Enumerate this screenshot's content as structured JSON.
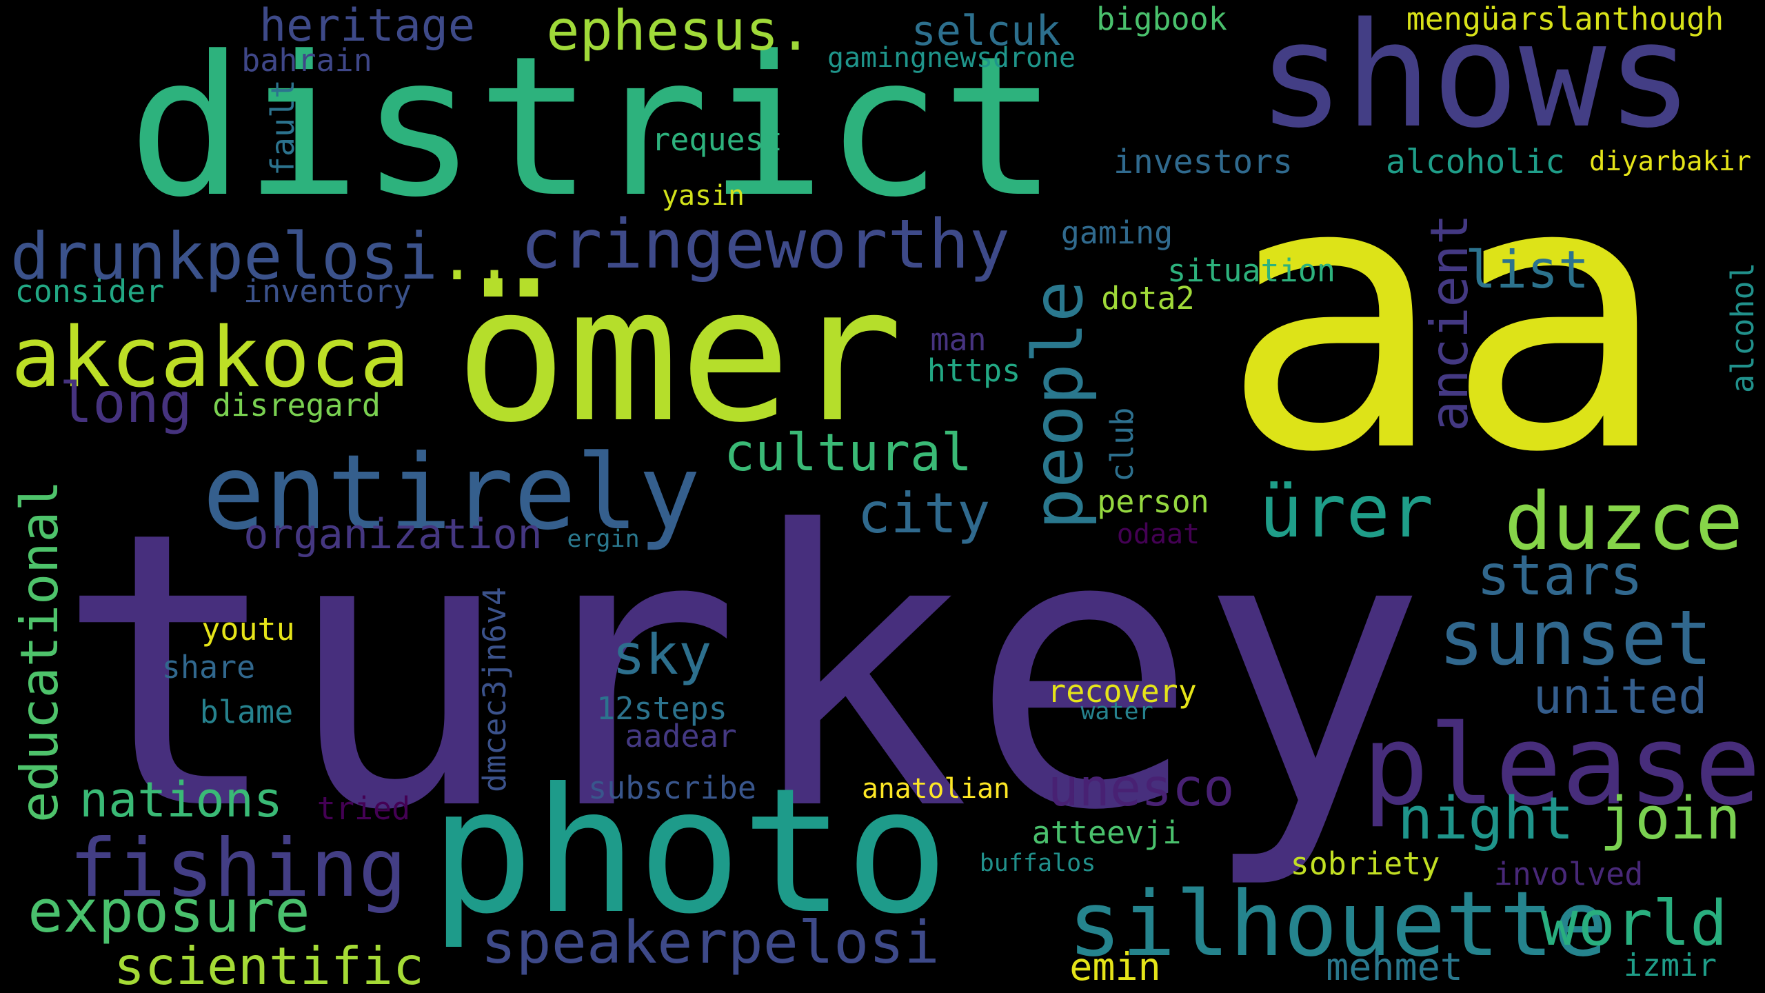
{
  "words": [
    {
      "id": "aa",
      "text": "aa",
      "color": "#dde318"
    },
    {
      "id": "turkey",
      "text": "turkey",
      "color": "#472f7d"
    },
    {
      "id": "district",
      "text": "district",
      "color": "#2db27d"
    },
    {
      "id": "omer",
      "text": "ömer",
      "color": "#b5de2b"
    },
    {
      "id": "shows",
      "text": "shows",
      "color": "#433e85"
    },
    {
      "id": "photo",
      "text": "photo",
      "color": "#1e9b8a"
    },
    {
      "id": "entirely",
      "text": "entirely",
      "color": "#355f8d"
    },
    {
      "id": "please",
      "text": "please",
      "color": "#472d7b"
    },
    {
      "id": "silhouette",
      "text": "silhouette",
      "color": "#25848e"
    },
    {
      "id": "fishing",
      "text": "fishing",
      "color": "#433e85"
    },
    {
      "id": "akcakoca",
      "text": "akcakoca",
      "color": "#bddf26"
    },
    {
      "id": "drunkpelosi",
      "text": "drunkpelosi",
      "color": "#3b528b"
    },
    {
      "id": "cringeworthy",
      "text": "cringeworthy",
      "color": "#3e4a89"
    },
    {
      "id": "people",
      "text": "people",
      "color": "#2a788e"
    },
    {
      "id": "ellipsis",
      "text": "..",
      "color": "#b5de2b"
    },
    {
      "id": "ephesus",
      "text": "ephesus.",
      "color": "#a0da39"
    },
    {
      "id": "sunset",
      "text": "sunset",
      "color": "#31688e"
    },
    {
      "id": "duzce",
      "text": "duzce",
      "color": "#86d549"
    },
    {
      "id": "urer",
      "text": "ürer",
      "color": "#1f9e89"
    },
    {
      "id": "world",
      "text": "world",
      "color": "#29af7f"
    },
    {
      "id": "speakerpelosi",
      "text": "speakerpelosi",
      "color": "#3e4a89"
    },
    {
      "id": "exposure",
      "text": "exposure",
      "color": "#4ac16d"
    },
    {
      "id": "scientific",
      "text": "scientific",
      "color": "#a5db36"
    },
    {
      "id": "night",
      "text": "night",
      "color": "#1f958b"
    },
    {
      "id": "join",
      "text": "join",
      "color": "#7ad151"
    },
    {
      "id": "nations",
      "text": "nations",
      "color": "#3aba76"
    },
    {
      "id": "long",
      "text": "long",
      "color": "#46337f"
    },
    {
      "id": "cultural",
      "text": "cultural",
      "color": "#3aba76"
    },
    {
      "id": "city",
      "text": "city",
      "color": "#306a8e"
    },
    {
      "id": "sky",
      "text": "sky",
      "color": "#2d708e"
    },
    {
      "id": "stars",
      "text": "stars",
      "color": "#31688e"
    },
    {
      "id": "united",
      "text": "united",
      "color": "#355e8d"
    },
    {
      "id": "unesco",
      "text": "unesco",
      "color": "#482173"
    },
    {
      "id": "list",
      "text": "list",
      "color": "#2c738e"
    },
    {
      "id": "ancient",
      "text": "ancient",
      "color": "#443983"
    },
    {
      "id": "educational",
      "text": "educational",
      "color": "#4ec36b"
    },
    {
      "id": "heritage",
      "text": "heritage",
      "color": "#3e4a89"
    },
    {
      "id": "selcuk",
      "text": "selcuk",
      "color": "#2d708e"
    },
    {
      "id": "organization",
      "text": "organization",
      "color": "#453781"
    },
    {
      "id": "investors",
      "text": "investors",
      "color": "#306a8e"
    },
    {
      "id": "alcoholic",
      "text": "alcoholic",
      "color": "#1f9e89"
    },
    {
      "id": "menguarslanthough",
      "text": "mengüarslanthough",
      "color": "#d8e219"
    },
    {
      "id": "bigbook",
      "text": "bigbook",
      "color": "#4ac16d"
    },
    {
      "id": "bahrain",
      "text": "bahrain",
      "color": "#3f4788"
    },
    {
      "id": "gamingnewsdrone",
      "text": "gamingnewsdrone",
      "color": "#1f958b"
    },
    {
      "id": "request",
      "text": "request",
      "color": "#2db27d"
    },
    {
      "id": "yasin",
      "text": "yasin",
      "color": "#d2e21b"
    },
    {
      "id": "fault",
      "text": "fault",
      "color": "#2c738e"
    },
    {
      "id": "diyarbakir",
      "text": "diyarbakir",
      "color": "#e5e419"
    },
    {
      "id": "gaming",
      "text": "gaming",
      "color": "#306a8e"
    },
    {
      "id": "situation",
      "text": "situation",
      "color": "#2db27d"
    },
    {
      "id": "dota2",
      "text": "dota2",
      "color": "#a0da39"
    },
    {
      "id": "consider",
      "text": "consider",
      "color": "#22a884"
    },
    {
      "id": "inventory",
      "text": "inventory",
      "color": "#3b528b"
    },
    {
      "id": "alcohol",
      "text": "alcohol",
      "color": "#21918c"
    },
    {
      "id": "man",
      "text": "man",
      "color": "#46337f"
    },
    {
      "id": "https",
      "text": "https",
      "color": "#22a884"
    },
    {
      "id": "disregard",
      "text": "disregard",
      "color": "#7ad151"
    },
    {
      "id": "club",
      "text": "club",
      "color": "#2d708e"
    },
    {
      "id": "person",
      "text": "person",
      "color": "#95d840"
    },
    {
      "id": "odaat",
      "text": "odaat",
      "color": "#440154"
    },
    {
      "id": "ergin",
      "text": "ergin",
      "color": "#2a788e"
    },
    {
      "id": "youtu",
      "text": "youtu",
      "color": "#e5e419"
    },
    {
      "id": "share",
      "text": "share",
      "color": "#31688e"
    },
    {
      "id": "blame",
      "text": "blame",
      "color": "#26828e"
    },
    {
      "id": "dmcec3jn6v4",
      "text": "dmcec3jn6v4",
      "color": "#3b528b"
    },
    {
      "id": "12steps",
      "text": "12steps",
      "color": "#2c738e"
    },
    {
      "id": "aadear",
      "text": "aadear",
      "color": "#443983"
    },
    {
      "id": "subscribe",
      "text": "subscribe",
      "color": "#39568c"
    },
    {
      "id": "recovery",
      "text": "recovery",
      "color": "#e5e419"
    },
    {
      "id": "water",
      "text": "water",
      "color": "#26828e"
    },
    {
      "id": "anatolian",
      "text": "anatolian",
      "color": "#fde725"
    },
    {
      "id": "tried",
      "text": "tried",
      "color": "#440154"
    },
    {
      "id": "atteevji",
      "text": "atteevji",
      "color": "#4ac16d"
    },
    {
      "id": "buffalos",
      "text": "buffalos",
      "color": "#21918c"
    },
    {
      "id": "sobriety",
      "text": "sobriety",
      "color": "#c2df23"
    },
    {
      "id": "involved",
      "text": "involved",
      "color": "#482878"
    },
    {
      "id": "emin",
      "text": "emin",
      "color": "#e5e419"
    },
    {
      "id": "mehmet",
      "text": "mehmet",
      "color": "#2a788e"
    },
    {
      "id": "izmir",
      "text": "izmir",
      "color": "#1f9e89"
    }
  ]
}
